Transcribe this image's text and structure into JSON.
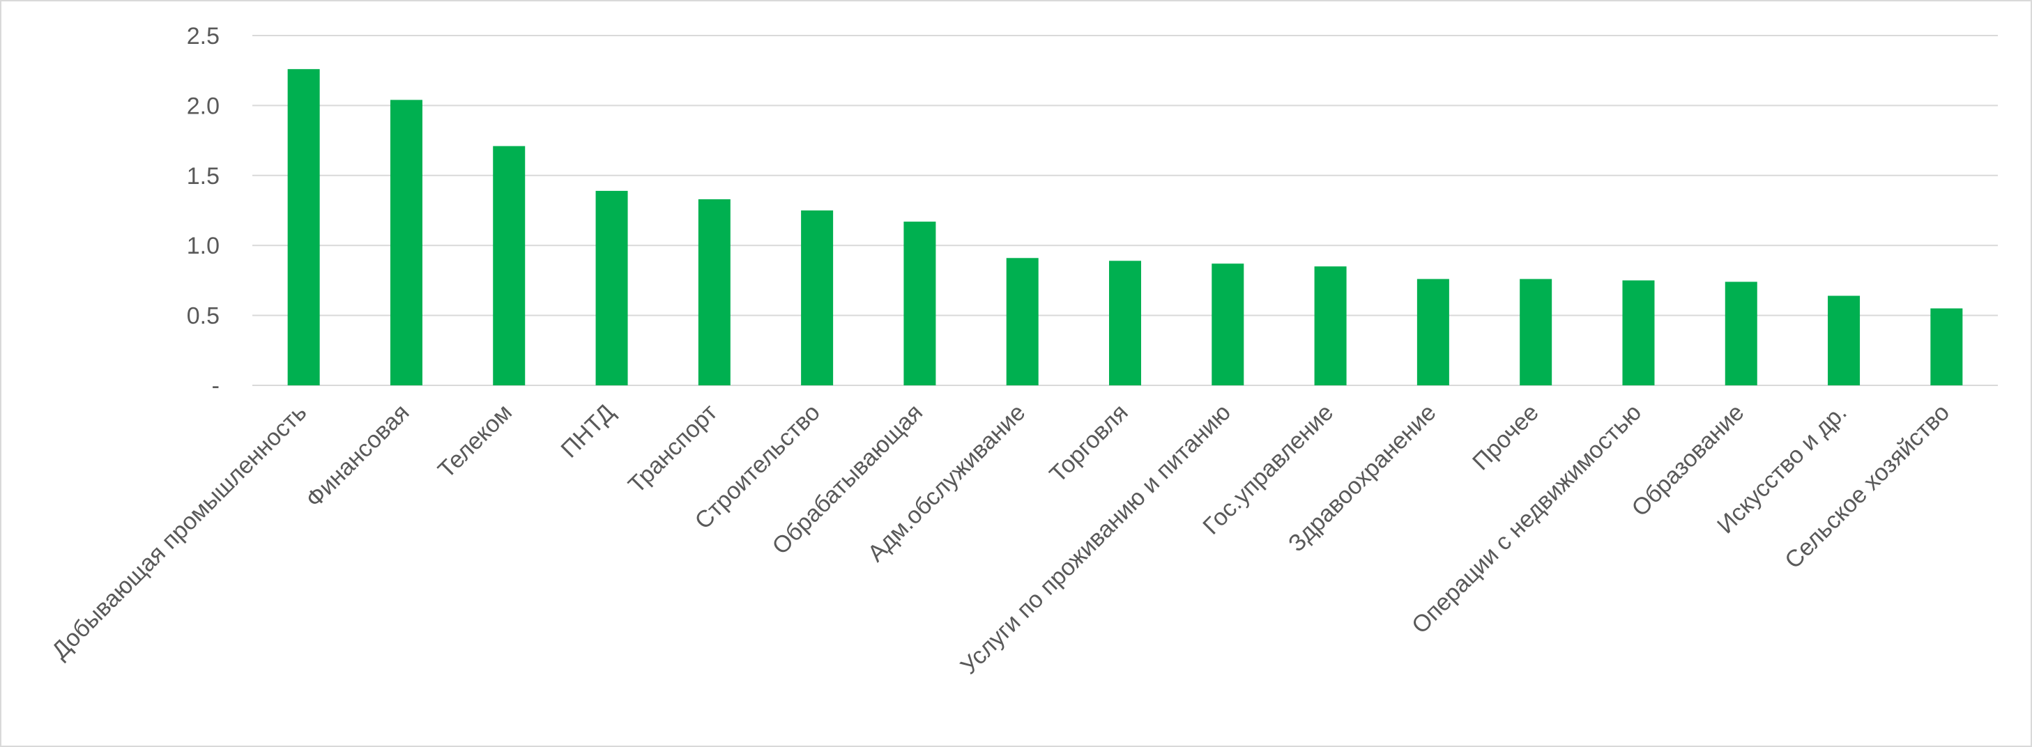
{
  "chart_data": {
    "type": "bar",
    "title": "",
    "xlabel": "",
    "ylabel": "",
    "ylim": [
      0,
      2.5
    ],
    "y_ticks": [
      0,
      0.5,
      1.0,
      1.5,
      2.0,
      2.5
    ],
    "y_tick_labels": [
      "-",
      "0.5",
      "1.0",
      "1.5",
      "2.0",
      "2.5"
    ],
    "grid": true,
    "legend": "none",
    "bar_color": "#00b050",
    "categories": [
      "Добывающая промышленность",
      "Финансовая",
      "Телеком",
      "ПНТД",
      "Транспорт",
      "Строительство",
      "Обрабатывающая",
      "Адм.обслуживание",
      "Торговля",
      "Услуги по проживанию и питанию",
      "Гос.управление",
      "Здравоохранение",
      "Прочее",
      "Операции с недвижимостью",
      "Образование",
      "Искусство и др.",
      "Сельское хозяйство"
    ],
    "values": [
      2.26,
      2.04,
      1.71,
      1.39,
      1.33,
      1.25,
      1.17,
      0.91,
      0.89,
      0.87,
      0.85,
      0.76,
      0.76,
      0.75,
      0.74,
      0.64,
      0.55
    ]
  }
}
